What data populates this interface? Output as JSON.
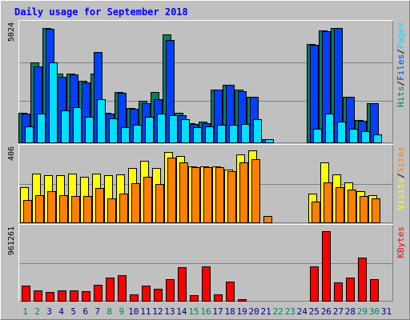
{
  "chart_data": {
    "type": "bar",
    "title": "Daily usage for September 2018",
    "colors": {
      "hits": "#00805c",
      "files": "#0040ff",
      "pages": "#00e0ff",
      "visits": "#ffff00",
      "sites": "#ff8000",
      "kbytes": "#ff0000",
      "weekend": "#00805c",
      "weekday": "#000080",
      "title": "#0000ff",
      "bg": "#c0c0c0",
      "grid": "#808080"
    },
    "days": [
      "1",
      "2",
      "3",
      "4",
      "5",
      "6",
      "7",
      "8",
      "9",
      "10",
      "11",
      "12",
      "13",
      "14",
      "15",
      "16",
      "17",
      "18",
      "19",
      "20",
      "21",
      "22",
      "23",
      "24",
      "25",
      "26",
      "27",
      "28",
      "29",
      "30",
      "31"
    ],
    "weekend_days": [
      "1",
      "2",
      "8",
      "9",
      "15",
      "16",
      "22",
      "23",
      "29",
      "30"
    ],
    "panels": [
      {
        "id": "hits-panel",
        "max_label": "5024",
        "ylim": [
          0,
          5024
        ],
        "legend": [
          {
            "text": "Hits",
            "color": "#00805c"
          },
          {
            "text": "/",
            "color": "#000000"
          },
          {
            "text": "Files",
            "color": "#0040ff"
          },
          {
            "text": "/",
            "color": "#000000"
          },
          {
            "text": "Pages",
            "color": "#00e0ff"
          }
        ],
        "series": [
          {
            "name": "Hits",
            "color": "#00805c",
            "values": [
              1300,
              3500,
              5000,
              3000,
              3000,
              2700,
              3000,
              1300,
              2200,
              1500,
              1800,
              2200,
              4700,
              1300,
              850,
              900,
              2300,
              2500,
              2300,
              2000,
              150,
              0,
              0,
              0,
              4300,
              4900,
              5000,
              2000,
              980,
              1700,
              0
            ]
          },
          {
            "name": "Files",
            "color": "#0040ff",
            "values": [
              1250,
              3300,
              4950,
              2850,
              2950,
              2600,
              3950,
              1250,
              2150,
              1450,
              1700,
              1900,
              4450,
              1200,
              800,
              850,
              2300,
              2500,
              2250,
              2000,
              150,
              0,
              0,
              0,
              4250,
              4850,
              5000,
              2000,
              950,
              1700,
              0
            ]
          },
          {
            "name": "Pages",
            "color": "#00e0ff",
            "values": [
              700,
              1250,
              3500,
              1400,
              1550,
              1100,
              1900,
              1050,
              650,
              780,
              1100,
              1250,
              1200,
              1000,
              650,
              700,
              760,
              760,
              800,
              1000,
              150,
              0,
              0,
              0,
              600,
              1250,
              900,
              600,
              500,
              350,
              0
            ]
          }
        ]
      },
      {
        "id": "visits-panel",
        "max_label": "406",
        "ylim": [
          0,
          406
        ],
        "legend": [
          {
            "text": "Visits",
            "color": "#ffff00"
          },
          {
            "text": "/",
            "color": "#000000"
          },
          {
            "text": "Sites",
            "color": "#ff8000"
          }
        ],
        "series": [
          {
            "name": "Visits",
            "color": "#ffff00",
            "values": [
              200,
              280,
              270,
              270,
              280,
              260,
              280,
              270,
              275,
              310,
              350,
              310,
              400,
              380,
              320,
              320,
              320,
              300,
              390,
              410,
              0,
              0,
              0,
              0,
              165,
              340,
              275,
              230,
              180,
              155,
              0
            ]
          },
          {
            "name": "Sites",
            "color": "#ff8000",
            "values": [
              130,
              155,
              180,
              155,
              150,
              150,
              195,
              135,
              165,
              225,
              260,
              220,
              370,
              340,
              315,
              315,
              315,
              290,
              340,
              360,
              35,
              0,
              0,
              0,
              120,
              230,
              200,
              185,
              150,
              135,
              0
            ]
          }
        ]
      },
      {
        "id": "kbytes-panel",
        "max_label": "961261",
        "ylim": [
          0,
          961261
        ],
        "legend": [
          {
            "text": "KBytes",
            "color": "#ff0000"
          }
        ],
        "series": [
          {
            "name": "KBytes",
            "color": "#ff0000",
            "values": [
              215000,
              140000,
              125000,
              145000,
              140000,
              130000,
              220000,
              315000,
              355000,
              90000,
              210000,
              170000,
              295000,
              460000,
              75000,
              470000,
              85000,
              270000,
              10000,
              0,
              0,
              0,
              0,
              0,
              470000,
              961261,
              255000,
              320000,
              595000,
              300000,
              0
            ]
          }
        ]
      }
    ]
  }
}
